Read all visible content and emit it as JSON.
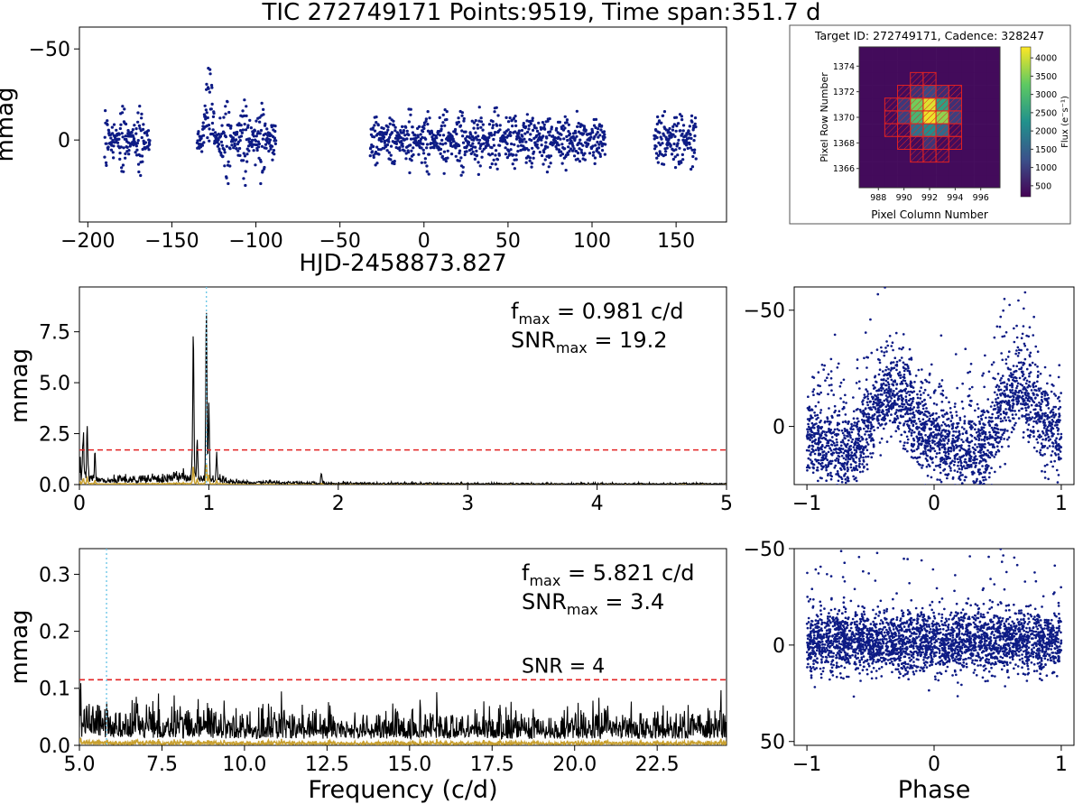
{
  "figure_title": "TIC 272749171  Points:9519,  Time span:351.7 d",
  "colors": {
    "points": "#0d1b85",
    "spectrum": "#000000",
    "window": "#c8a030",
    "threshold": "#e32222",
    "peak_marker": "#6fc8e8"
  },
  "chart_data": [
    {
      "id": "light_curve",
      "type": "scatter",
      "xlabel": "HJD-2458873.827",
      "ylabel": "mmag",
      "xlim": [
        -205,
        180
      ],
      "ylim": [
        45,
        -62
      ],
      "y_inverted": true,
      "xticks": [
        -200,
        -150,
        -100,
        -50,
        0,
        50,
        100,
        150
      ],
      "xtick_labels": [
        "−200",
        "−150",
        "−100",
        "−50",
        "0",
        "50",
        "100",
        "150"
      ],
      "yticks": [
        -50,
        0
      ],
      "ytick_labels": [
        "−50",
        "0"
      ],
      "segments": [
        {
          "x": [
            -190,
            -163
          ],
          "amplitude": 16
        },
        {
          "x": [
            -135,
            -88
          ],
          "amplitude": 18
        },
        {
          "x": [
            -32,
            108
          ],
          "amplitude": 15
        },
        {
          "x": [
            137,
            162
          ],
          "amplitude": 18
        }
      ],
      "n_points": 9519
    },
    {
      "id": "target_pixel_file",
      "type": "heatmap",
      "title": "Target ID: 272749171, Cadence: 328247",
      "xlabel": "Pixel Column Number",
      "ylabel": "Pixel Row Number",
      "xlim": [
        986.5,
        997.5
      ],
      "ylim": [
        1364.5,
        1375.5
      ],
      "xticks": [
        988,
        990,
        992,
        994,
        996
      ],
      "yticks": [
        1366,
        1368,
        1370,
        1372,
        1374
      ],
      "colorbar_label": "Flux (e⁻s⁻¹)",
      "colorbar_ticks": [
        500,
        1000,
        1500,
        2000,
        2500,
        3000,
        3500,
        4000
      ],
      "colorbar_range": [
        200,
        4300
      ],
      "bright_pixels": [
        {
          "col": 991,
          "row": 1371,
          "flux": 3400
        },
        {
          "col": 992,
          "row": 1371,
          "flux": 4100
        },
        {
          "col": 993,
          "row": 1371,
          "flux": 2500
        },
        {
          "col": 991,
          "row": 1370,
          "flux": 2900
        },
        {
          "col": 992,
          "row": 1370,
          "flux": 4200
        },
        {
          "col": 993,
          "row": 1370,
          "flux": 3600
        },
        {
          "col": 991,
          "row": 1369,
          "flux": 1700
        },
        {
          "col": 992,
          "row": 1369,
          "flux": 2200
        },
        {
          "col": 993,
          "row": 1369,
          "flux": 1600
        },
        {
          "col": 990,
          "row": 1371,
          "flux": 900
        },
        {
          "col": 990,
          "row": 1370,
          "flux": 1000
        },
        {
          "col": 994,
          "row": 1370,
          "flux": 1000
        },
        {
          "col": 994,
          "row": 1371,
          "flux": 800
        },
        {
          "col": 992,
          "row": 1372,
          "flux": 1100
        },
        {
          "col": 992,
          "row": 1368,
          "flux": 850
        },
        {
          "col": 991,
          "row": 1372,
          "flux": 800
        },
        {
          "col": 993,
          "row": 1372,
          "flux": 750
        }
      ],
      "aperture_rows": [
        {
          "row": 1373,
          "cols": [
            991,
            992
          ]
        },
        {
          "row": 1372,
          "cols": [
            990,
            991,
            992,
            993,
            994
          ]
        },
        {
          "row": 1371,
          "cols": [
            989,
            990,
            991,
            992,
            993,
            994
          ]
        },
        {
          "row": 1370,
          "cols": [
            989,
            990,
            991,
            992,
            993,
            994
          ]
        },
        {
          "row": 1369,
          "cols": [
            989,
            990,
            991,
            992,
            993,
            994
          ]
        },
        {
          "row": 1368,
          "cols": [
            990,
            991,
            992,
            993,
            994
          ]
        },
        {
          "row": 1367,
          "cols": [
            991,
            992,
            993
          ]
        }
      ]
    },
    {
      "id": "periodogram_low",
      "type": "line",
      "ylabel": "mmag",
      "xlim": [
        0,
        5
      ],
      "ylim": [
        0,
        9.7
      ],
      "xticks": [
        0,
        1,
        2,
        3,
        4,
        5
      ],
      "yticks": [
        0,
        2.5,
        5,
        7.5
      ],
      "ytick_labels": [
        "0.0",
        "2.5",
        "5.0",
        "7.5"
      ],
      "threshold_level": 1.7,
      "peak_marker_x": 0.981,
      "annotation": {
        "f_max": "0.981 c/d",
        "snr_max": "19.2"
      },
      "peaks": [
        {
          "x": 0.981,
          "y": 8.3
        },
        {
          "x": 0.88,
          "y": 7.3
        },
        {
          "x": 1.0,
          "y": 3.6
        },
        {
          "x": 0.91,
          "y": 2.0
        },
        {
          "x": 0.06,
          "y": 2.4
        },
        {
          "x": 0.03,
          "y": 1.9
        },
        {
          "x": 0.12,
          "y": 1.3
        },
        {
          "x": 1.06,
          "y": 1.2
        },
        {
          "x": 1.87,
          "y": 0.5
        }
      ]
    },
    {
      "id": "phase_low",
      "type": "scatter",
      "xlabel": "",
      "xlim": [
        -1.1,
        1.1
      ],
      "ylim": [
        25,
        -60
      ],
      "y_inverted": true,
      "xticks": [
        -1,
        0,
        1
      ],
      "xtick_labels": [
        "−1",
        "0",
        "1"
      ],
      "yticks": [
        -50,
        0
      ],
      "ytick_labels": [
        "−50",
        "0"
      ]
    },
    {
      "id": "periodogram_high",
      "type": "line",
      "xlabel": "Frequency (c/d)",
      "ylabel": "mmag",
      "xlim": [
        5.0,
        24.6
      ],
      "ylim": [
        0,
        0.345
      ],
      "xticks": [
        5,
        7.5,
        10,
        12.5,
        15,
        17.5,
        20,
        22.5
      ],
      "xtick_labels": [
        "5.0",
        "7.5",
        "10.0",
        "12.5",
        "15.0",
        "17.5",
        "20.0",
        "22.5"
      ],
      "yticks": [
        0,
        0.1,
        0.2,
        0.3
      ],
      "ytick_labels": [
        "0.0",
        "0.1",
        "0.2",
        "0.3"
      ],
      "threshold_level": 0.115,
      "threshold_label": "SNR = 4",
      "peak_marker_x": 5.821,
      "annotation": {
        "f_max": "5.821 c/d",
        "snr_max": "3.4"
      }
    },
    {
      "id": "phase_high",
      "type": "scatter",
      "xlabel": "Phase",
      "xlim": [
        -1.1,
        1.1
      ],
      "ylim": [
        52,
        -50
      ],
      "y_inverted": true,
      "xticks": [
        -1,
        0,
        1
      ],
      "xtick_labels": [
        "−1",
        "0",
        "1"
      ],
      "yticks": [
        -50,
        0,
        50
      ],
      "ytick_labels": [
        "−50",
        "0",
        "50"
      ]
    }
  ]
}
